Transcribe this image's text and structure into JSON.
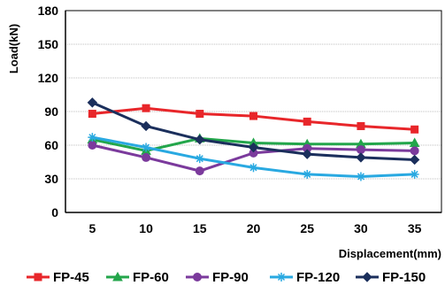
{
  "chart_data": {
    "type": "line",
    "title": "",
    "xlabel": "Displacement(mm)",
    "ylabel": "Load(kN)",
    "x": [
      5,
      10,
      15,
      20,
      25,
      30,
      35
    ],
    "x_tick_labels": [
      "5",
      "10",
      "15",
      "20",
      "25",
      "30",
      "35"
    ],
    "y_tick_labels": [
      "0",
      "30",
      "60",
      "90",
      "120",
      "150",
      "180"
    ],
    "ylim": [
      0,
      180
    ],
    "grid": "horizontal",
    "legend_position": "bottom",
    "series": [
      {
        "name": "FP-45",
        "color": "#e8262a",
        "marker": "square",
        "values": [
          88,
          93,
          88,
          86,
          81,
          77,
          74
        ]
      },
      {
        "name": "FP-60",
        "color": "#23a64b",
        "marker": "triangle",
        "values": [
          65,
          55,
          66,
          62,
          61,
          61,
          62
        ]
      },
      {
        "name": "FP-90",
        "color": "#7b3a9c",
        "marker": "circle",
        "values": [
          60,
          49,
          37,
          53,
          57,
          56,
          55
        ]
      },
      {
        "name": "FP-120",
        "color": "#29a9e1",
        "marker": "star",
        "values": [
          67,
          58,
          48,
          40,
          34,
          32,
          34
        ]
      },
      {
        "name": "FP-150",
        "color": "#1b2f5c",
        "marker": "diamond",
        "values": [
          98,
          77,
          65,
          58,
          52,
          49,
          47
        ]
      }
    ]
  }
}
